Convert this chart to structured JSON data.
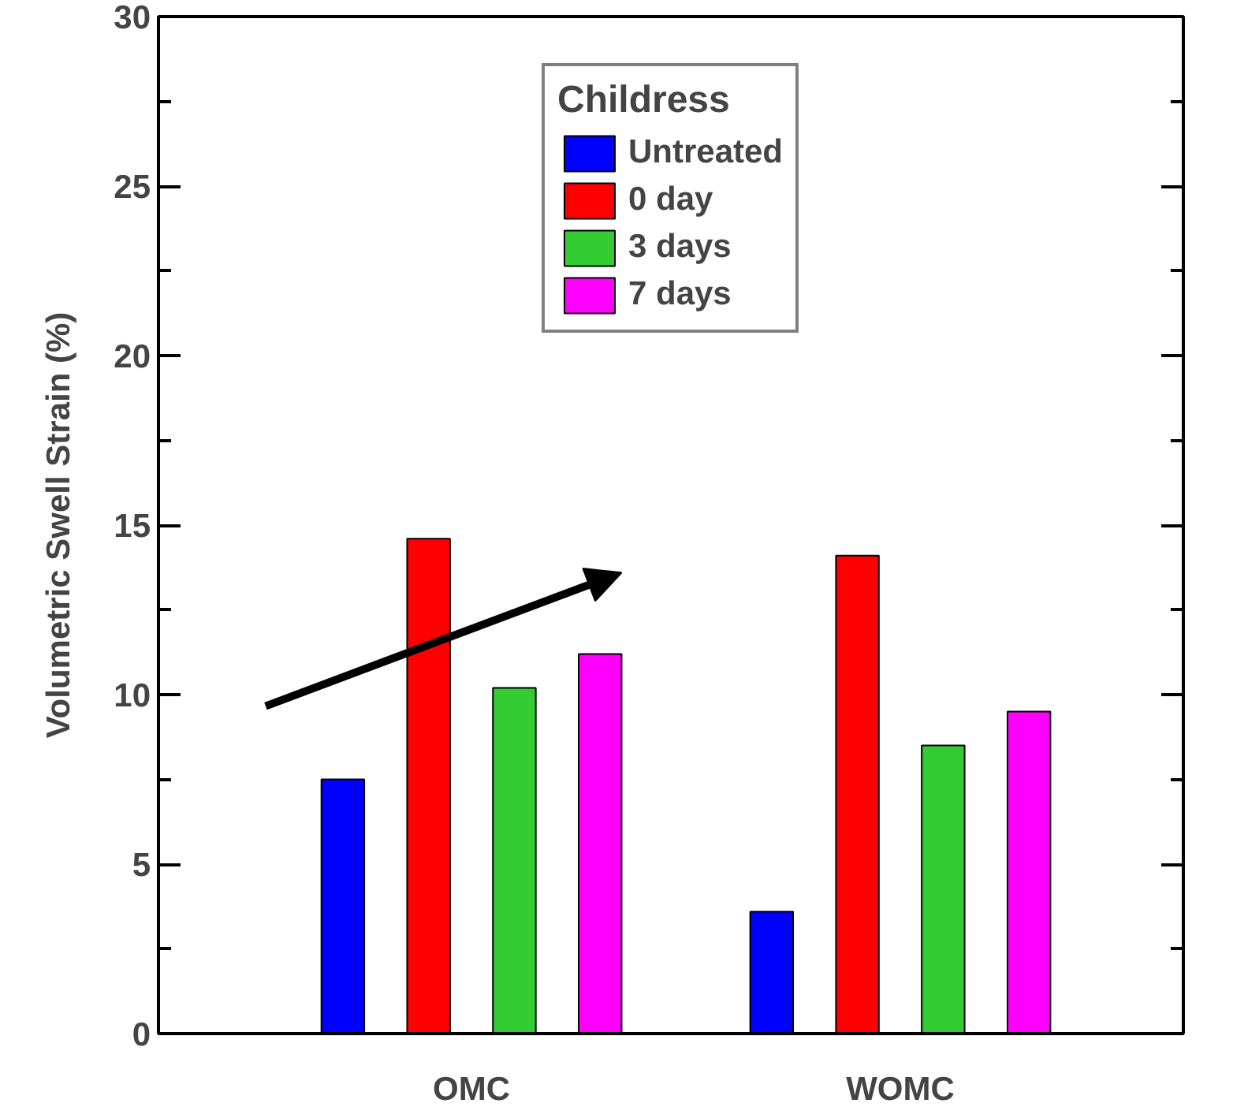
{
  "chart_data": {
    "type": "bar",
    "ylabel": "Volumetric Swell Strain (%)",
    "legend_title": "Childress",
    "categories": [
      "OMC",
      "WOMC"
    ],
    "series": [
      {
        "name": "Untreated",
        "color": "#0000ff",
        "values": [
          7.5,
          3.6
        ]
      },
      {
        "name": "0 day",
        "color": "#ff0000",
        "values": [
          14.6,
          14.1
        ]
      },
      {
        "name": "3 days",
        "color": "#33cc33",
        "values": [
          10.2,
          8.5
        ]
      },
      {
        "name": "7 days",
        "color": "#ff00ff",
        "values": [
          11.2,
          9.5
        ]
      }
    ],
    "ylim": [
      0,
      30
    ],
    "yticks": [
      0,
      5,
      10,
      15,
      20,
      25,
      30
    ],
    "grid": false,
    "legend": "top"
  }
}
